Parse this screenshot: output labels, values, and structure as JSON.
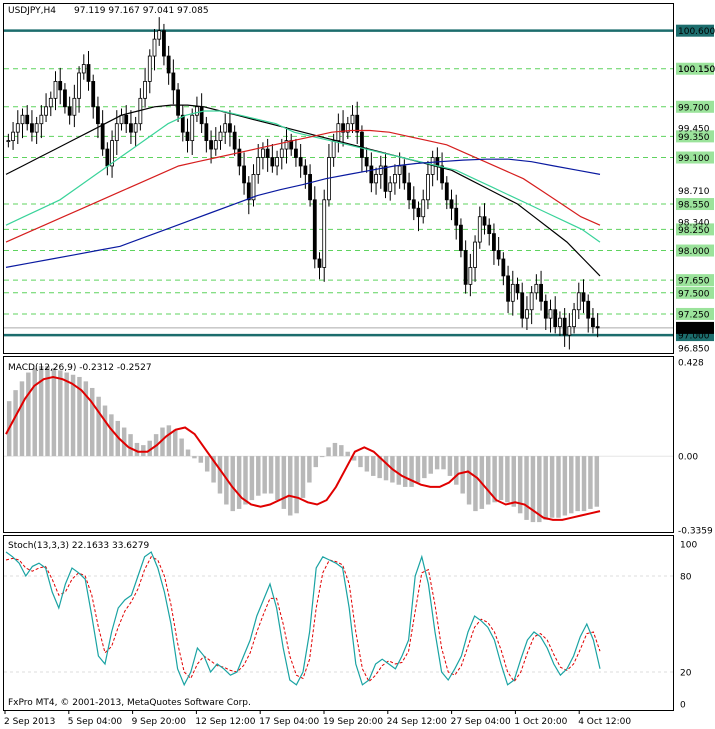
{
  "colors": {
    "bull": "#000000",
    "bear": "#000000",
    "ma_black": "#000000",
    "ma_green": "#3ad39a",
    "ma_red": "#d61e1e",
    "ma_blue": "#0a1aa0",
    "level_line": "#1c6d6d",
    "level_dashed": "#5fd35f",
    "macd_hist": "#b8b8b8",
    "macd_signal": "#e00000",
    "stoch_main": "#1aa3a3",
    "stoch_signal": "#e00000",
    "label_green_bg": "#9be39b",
    "current_label_bg": "#ffffff"
  },
  "header": {
    "symbol_tf": "USDJPY,H4",
    "ohlc": "97.119 97.167 97.041 97.085"
  },
  "footer": {
    "copyright": "FxPro MT4, © 2001-2013, MetaQuotes Software Corp."
  },
  "price_panel": {
    "scale_labels": [
      "100.150",
      "99.450",
      "98.710",
      "98.340",
      "96.850"
    ],
    "level_labels": [
      {
        "value": 100.6,
        "text": "100.600",
        "style": "solid"
      },
      {
        "value": 100.15,
        "text": "100.150",
        "style": "dashed"
      },
      {
        "value": 99.7,
        "text": "99.700",
        "style": "dashed"
      },
      {
        "value": 99.35,
        "text": "99.350",
        "style": "dashed"
      },
      {
        "value": 99.1,
        "text": "99.100",
        "style": "dashed"
      },
      {
        "value": 98.55,
        "text": "98.550",
        "style": "dashed"
      },
      {
        "value": 98.25,
        "text": "98.250",
        "style": "dashed"
      },
      {
        "value": 98.0,
        "text": "98.000",
        "style": "dashed"
      },
      {
        "value": 97.65,
        "text": "97.650",
        "style": "dashed"
      },
      {
        "value": 97.5,
        "text": "97.500",
        "style": "dashed"
      },
      {
        "value": 97.25,
        "text": "97.250",
        "style": "dashed"
      },
      {
        "value": 97.0,
        "text": "97.000",
        "style": "solid"
      }
    ],
    "current_price": {
      "value": 97.085,
      "text": "97.085"
    }
  },
  "macd_panel": {
    "title": "MACD(12,26,9) -0.2312 -0.2527",
    "scale_labels": [
      "0.428",
      "0.00",
      "-0.3359"
    ]
  },
  "stoch_panel": {
    "title": "Stoch(13,3,3) 22.1633 33.6279",
    "scale_labels": [
      "100",
      "80",
      "20",
      "0"
    ]
  },
  "chart_data": [
    {
      "type": "candlestick",
      "name": "USDJPY,H4",
      "ylim": [
        96.8,
        100.75
      ],
      "note_ma_series": [
        "black",
        "green",
        "red",
        "blue"
      ],
      "closes": [
        99.3,
        99.4,
        99.5,
        99.6,
        99.5,
        99.4,
        99.5,
        99.6,
        99.7,
        99.8,
        100.0,
        99.9,
        99.7,
        99.6,
        99.8,
        100.1,
        100.2,
        100.0,
        99.7,
        99.5,
        99.2,
        99.0,
        99.3,
        99.5,
        99.6,
        99.5,
        99.4,
        99.5,
        99.8,
        100.0,
        100.3,
        100.5,
        100.6,
        100.3,
        100.1,
        99.9,
        99.6,
        99.4,
        99.3,
        99.6,
        99.7,
        99.5,
        99.3,
        99.2,
        99.3,
        99.4,
        99.5,
        99.4,
        99.2,
        99.0,
        98.8,
        98.6,
        98.9,
        99.1,
        99.2,
        99.1,
        99.0,
        99.1,
        99.2,
        99.3,
        99.2,
        99.1,
        99.0,
        98.9,
        98.6,
        97.9,
        97.8,
        98.6,
        99.1,
        99.3,
        99.5,
        99.4,
        99.5,
        99.6,
        99.4,
        99.1,
        99.0,
        98.8,
        98.9,
        99.0,
        98.7,
        98.8,
        98.9,
        99.0,
        98.8,
        98.6,
        98.5,
        98.4,
        98.6,
        98.9,
        99.1,
        99.0,
        98.8,
        98.6,
        98.5,
        98.3,
        98.0,
        97.6,
        97.8,
        98.1,
        98.4,
        98.3,
        98.2,
        98.0,
        97.9,
        97.7,
        97.4,
        97.6,
        97.5,
        97.2,
        97.3,
        97.5,
        97.6,
        97.4,
        97.2,
        97.3,
        97.1,
        97.2,
        97.0,
        97.1,
        97.3,
        97.5,
        97.4,
        97.2,
        97.1,
        97.085
      ],
      "ma_black_values": [
        98.9,
        99.0,
        99.1,
        99.2,
        99.3,
        99.4,
        99.5,
        99.6,
        99.65,
        99.7,
        99.72,
        99.72,
        99.7,
        99.65,
        99.6,
        99.55,
        99.5,
        99.45,
        99.4,
        99.35,
        99.3,
        99.25,
        99.2,
        99.15,
        99.1,
        99.05,
        99.0,
        98.95,
        98.85,
        98.75,
        98.65,
        98.55,
        98.4,
        98.25,
        98.1,
        97.9,
        97.7
      ],
      "ma_green_values": [
        98.3,
        98.4,
        98.5,
        98.6,
        98.75,
        98.9,
        99.05,
        99.2,
        99.35,
        99.5,
        99.6,
        99.65,
        99.65,
        99.6,
        99.55,
        99.5,
        99.4,
        99.35,
        99.3,
        99.25,
        99.2,
        99.15,
        99.1,
        99.05,
        99.0,
        98.95,
        98.85,
        98.75,
        98.65,
        98.55,
        98.45,
        98.35,
        98.25,
        98.1
      ],
      "ma_red_values": [
        98.1,
        98.2,
        98.3,
        98.4,
        98.5,
        98.6,
        98.7,
        98.8,
        98.9,
        99.0,
        99.05,
        99.1,
        99.15,
        99.2,
        99.25,
        99.3,
        99.35,
        99.4,
        99.42,
        99.42,
        99.4,
        99.35,
        99.3,
        99.25,
        99.15,
        99.05,
        98.95,
        98.85,
        98.7,
        98.55,
        98.4,
        98.3
      ],
      "ma_blue_values": [
        97.8,
        97.85,
        97.9,
        97.95,
        98.0,
        98.05,
        98.15,
        98.25,
        98.35,
        98.45,
        98.55,
        98.65,
        98.72,
        98.78,
        98.85,
        98.9,
        98.95,
        99.0,
        99.03,
        99.05,
        99.07,
        99.08,
        99.08,
        99.05,
        99.0,
        98.95,
        98.9
      ]
    },
    {
      "type": "bar",
      "name": "MACD(12,26,9)",
      "ylim": [
        -0.3359,
        0.428
      ],
      "histogram": [
        0.25,
        0.3,
        0.34,
        0.38,
        0.4,
        0.41,
        0.41,
        0.4,
        0.39,
        0.38,
        0.37,
        0.36,
        0.34,
        0.31,
        0.27,
        0.23,
        0.19,
        0.16,
        0.13,
        0.1,
        0.06,
        0.05,
        0.07,
        0.1,
        0.13,
        0.14,
        0.12,
        0.08,
        0.03,
        -0.01,
        -0.03,
        -0.07,
        -0.12,
        -0.17,
        -0.22,
        -0.25,
        -0.24,
        -0.22,
        -0.2,
        -0.18,
        -0.17,
        -0.17,
        -0.2,
        -0.24,
        -0.27,
        -0.26,
        -0.19,
        -0.12,
        -0.05,
        0.0,
        0.04,
        0.06,
        0.05,
        0.02,
        -0.02,
        -0.05,
        -0.07,
        -0.09,
        -0.1,
        -0.11,
        -0.12,
        -0.13,
        -0.14,
        -0.14,
        -0.12,
        -0.1,
        -0.08,
        -0.06,
        -0.06,
        -0.09,
        -0.13,
        -0.17,
        -0.22,
        -0.25,
        -0.24,
        -0.22,
        -0.21,
        -0.2,
        -0.21,
        -0.23,
        -0.26,
        -0.29,
        -0.3,
        -0.3,
        -0.29,
        -0.28,
        -0.28,
        -0.27,
        -0.26,
        -0.25,
        -0.25,
        -0.24,
        -0.23
      ],
      "signal": [
        0.1,
        0.18,
        0.26,
        0.32,
        0.35,
        0.36,
        0.35,
        0.33,
        0.3,
        0.25,
        0.19,
        0.13,
        0.08,
        0.04,
        0.02,
        0.02,
        0.05,
        0.09,
        0.12,
        0.13,
        0.1,
        0.04,
        -0.02,
        -0.08,
        -0.14,
        -0.19,
        -0.22,
        -0.23,
        -0.22,
        -0.2,
        -0.18,
        -0.19,
        -0.21,
        -0.22,
        -0.2,
        -0.14,
        -0.06,
        0.02,
        0.04,
        0.02,
        -0.02,
        -0.06,
        -0.09,
        -0.11,
        -0.13,
        -0.14,
        -0.14,
        -0.12,
        -0.08,
        -0.07,
        -0.1,
        -0.15,
        -0.2,
        -0.22,
        -0.21,
        -0.22,
        -0.25,
        -0.28,
        -0.29,
        -0.29,
        -0.28,
        -0.27,
        -0.26,
        -0.25
      ]
    },
    {
      "type": "line",
      "name": "Stoch(13,3,3)",
      "ylim": [
        0,
        100
      ],
      "main": [
        95,
        92,
        88,
        80,
        86,
        88,
        85,
        70,
        60,
        75,
        85,
        82,
        78,
        55,
        30,
        25,
        45,
        60,
        65,
        68,
        80,
        92,
        95,
        85,
        70,
        50,
        22,
        12,
        20,
        35,
        30,
        20,
        25,
        22,
        18,
        20,
        30,
        40,
        55,
        65,
        75,
        60,
        35,
        15,
        12,
        20,
        45,
        85,
        92,
        90,
        88,
        85,
        60,
        25,
        12,
        15,
        25,
        28,
        25,
        22,
        30,
        40,
        80,
        92,
        75,
        45,
        20,
        15,
        22,
        30,
        45,
        55,
        52,
        48,
        40,
        25,
        12,
        15,
        28,
        40,
        45,
        42,
        35,
        25,
        18,
        22,
        30,
        42,
        50,
        40,
        22
      ],
      "signal": [
        90,
        91,
        90,
        85,
        83,
        85,
        86,
        78,
        68,
        70,
        78,
        82,
        80,
        68,
        48,
        32,
        36,
        48,
        58,
        64,
        72,
        84,
        92,
        90,
        80,
        62,
        38,
        20,
        16,
        25,
        30,
        27,
        24,
        23,
        21,
        20,
        24,
        32,
        45,
        56,
        66,
        66,
        50,
        30,
        18,
        16,
        28,
        60,
        82,
        90,
        89,
        87,
        75,
        45,
        22,
        14,
        18,
        24,
        27,
        25,
        26,
        33,
        58,
        82,
        84,
        62,
        35,
        20,
        18,
        24,
        36,
        48,
        53,
        51,
        45,
        34,
        20,
        14,
        20,
        32,
        42,
        44,
        40,
        31,
        23,
        21,
        25,
        34,
        44,
        45,
        33
      ]
    }
  ],
  "x_axis": {
    "labels": [
      "2 Sep 2013",
      "5 Sep 04:00",
      "9 Sep 20:00",
      "12 Sep 12:00",
      "17 Sep 04:00",
      "19 Sep 20:00",
      "24 Sep 12:00",
      "27 Sep 04:00",
      "1 Oct 20:00",
      "4 Oct 12:00"
    ]
  }
}
